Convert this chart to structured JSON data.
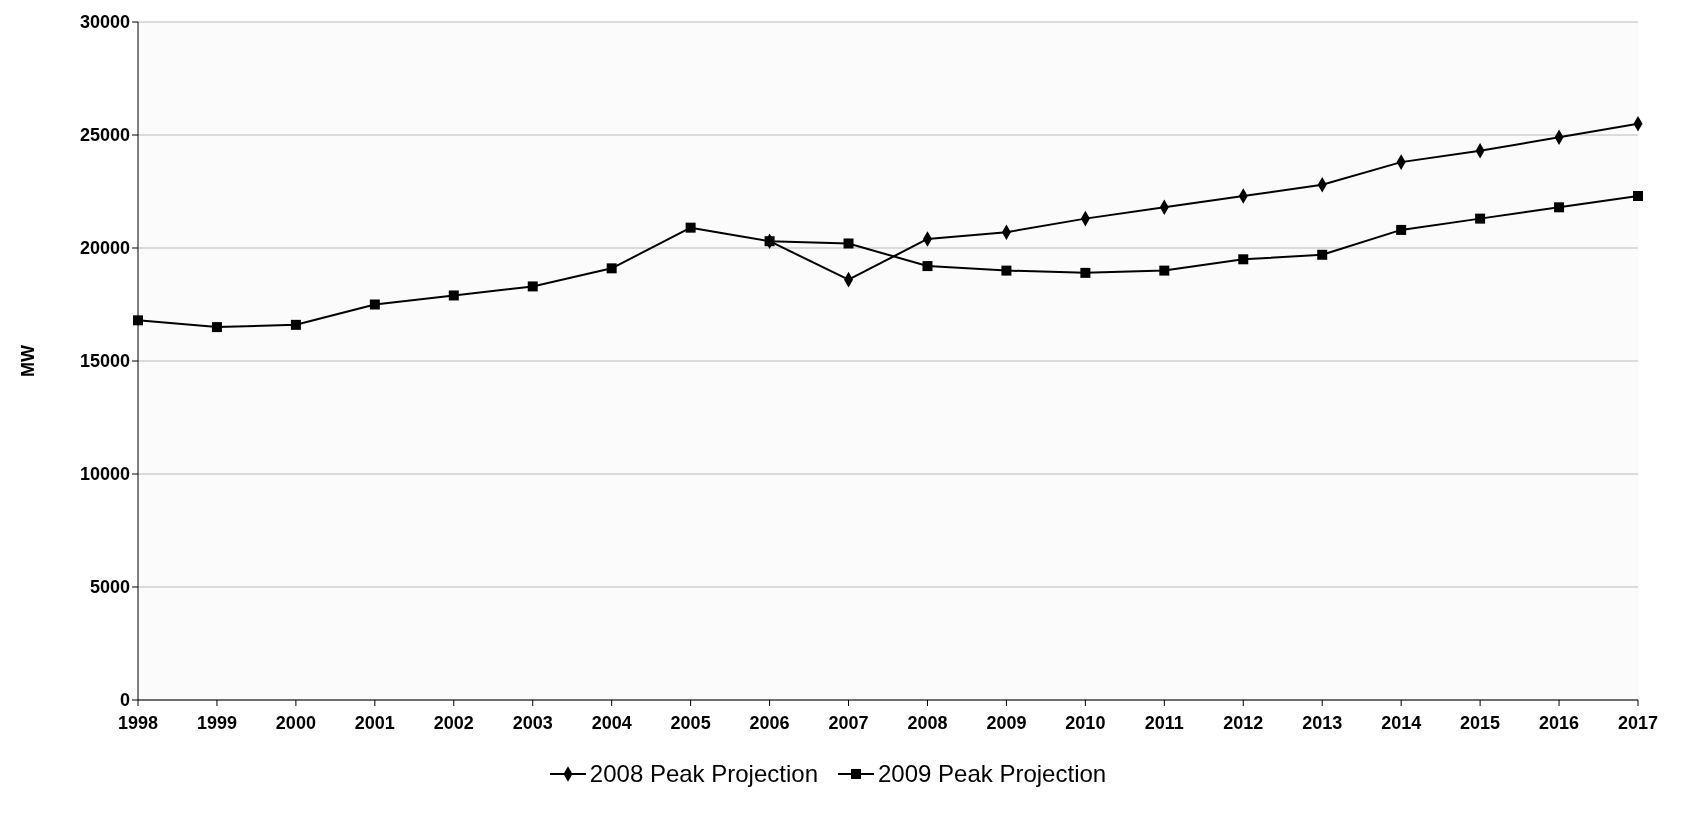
{
  "chart_data": {
    "type": "line",
    "ylabel": "MW",
    "categories": [
      "1998",
      "1999",
      "2000",
      "2001",
      "2002",
      "2003",
      "2004",
      "2005",
      "2006",
      "2007",
      "2008",
      "2009",
      "2010",
      "2011",
      "2012",
      "2013",
      "2014",
      "2015",
      "2016",
      "2017"
    ],
    "series": [
      {
        "name": "2008 Peak Projection",
        "color": "#000000",
        "marker": "diamond",
        "values": [
          null,
          null,
          null,
          null,
          null,
          null,
          null,
          null,
          20300,
          18600,
          20400,
          20700,
          21300,
          21800,
          22300,
          22800,
          23800,
          24300,
          24900,
          25500
        ]
      },
      {
        "name": "2009 Peak Projection",
        "color": "#000000",
        "marker": "square",
        "values": [
          16800,
          16500,
          16600,
          17500,
          17900,
          18300,
          19100,
          20900,
          20300,
          20200,
          19200,
          19000,
          18900,
          19000,
          19500,
          19700,
          20800,
          21300,
          21800,
          22300
        ]
      }
    ],
    "ylim": [
      0,
      30000
    ],
    "yticks": [
      0,
      5000,
      10000,
      15000,
      20000,
      25000,
      30000
    ],
    "grid": "y",
    "legend": "bottom"
  }
}
